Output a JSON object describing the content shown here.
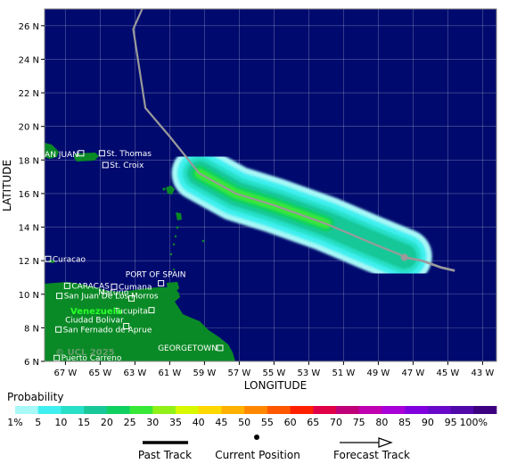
{
  "map": {
    "y_axis_label": "LATITUDE",
    "x_axis_label": "LONGITUDE",
    "lat_ticks": [
      "26 N",
      "24 N",
      "22 N",
      "20 N",
      "18 N",
      "16 N",
      "14 N",
      "12 N",
      "10 N",
      "8 N",
      "6 N"
    ],
    "lon_ticks": [
      "67 W",
      "65 W",
      "63 W",
      "61 W",
      "59 W",
      "57 W",
      "55 W",
      "53 W",
      "51 W",
      "49 W",
      "47 W",
      "45 W",
      "43 W"
    ],
    "lat_range": [
      6,
      27
    ],
    "lon_range": [
      -68.2,
      -42.2
    ],
    "ocean_color": "#000a6e",
    "land_color": "#0a8a26",
    "places": [
      {
        "name": "SAN JUAN",
        "lon": -66.1,
        "lat": 18.4,
        "marker": true
      },
      {
        "name": "St. Thomas",
        "lon": -64.9,
        "lat": 18.4,
        "marker": true
      },
      {
        "name": "St. Croix",
        "lon": -64.7,
        "lat": 17.7,
        "marker": true
      },
      {
        "name": "Curacao",
        "lon": -68.0,
        "lat": 12.1,
        "marker": true
      },
      {
        "name": "PORT OF SPAIN",
        "lon": -61.5,
        "lat": 10.65,
        "marker": true
      },
      {
        "name": "CARACAS",
        "lon": -66.9,
        "lat": 10.5,
        "marker": true
      },
      {
        "name": "Cumana",
        "lon": -64.2,
        "lat": 10.45,
        "marker": true
      },
      {
        "name": "San Juan De Los Morros",
        "lon": -67.35,
        "lat": 9.9,
        "marker": true
      },
      {
        "name": "Maturin",
        "lon": -63.2,
        "lat": 9.75,
        "marker": true
      },
      {
        "name": "Tucupita",
        "lon": -62.05,
        "lat": 9.05,
        "marker": true
      },
      {
        "name": "Ciudad Bolivar",
        "lon": -63.5,
        "lat": 8.1,
        "marker": true
      },
      {
        "name": "San Fernado de Aprue",
        "lon": -67.4,
        "lat": 7.9,
        "marker": true
      },
      {
        "name": "GEORGETOWN",
        "lon": -58.1,
        "lat": 6.8,
        "marker": true
      },
      {
        "name": "Puerto Carreno",
        "lon": -67.5,
        "lat": 6.2,
        "marker": true
      }
    ],
    "country_label": "Venezuela",
    "watermark": "© UCL 2025"
  },
  "track": {
    "past": [
      [
        -62.5,
        27.2
      ],
      [
        -63.1,
        25.8
      ],
      [
        -62.4,
        21.1
      ],
      [
        -61.0,
        19.4
      ],
      [
        -59.3,
        17.2
      ],
      [
        -57.2,
        16.0
      ],
      [
        -55.0,
        15.3
      ],
      [
        -52.0,
        14.2
      ],
      [
        -49.5,
        13.1
      ],
      [
        -47.5,
        12.25
      ]
    ],
    "current": [
      -47.5,
      12.2
    ],
    "forecast": [
      [
        -47.5,
        12.2
      ],
      [
        -46.5,
        12.0
      ],
      [
        -45.4,
        11.6
      ],
      [
        -44.6,
        11.4
      ]
    ],
    "color": "#9a9a9a"
  },
  "legend": {
    "title": "Probability",
    "labels": [
      "1%",
      "5",
      "10",
      "15",
      "20",
      "25",
      "30",
      "35",
      "40",
      "45",
      "50",
      "55",
      "60",
      "65",
      "70",
      "75",
      "80",
      "85",
      "90",
      "95",
      "100%"
    ],
    "colors": [
      "#a8f8f8",
      "#40f0f0",
      "#28e0c8",
      "#18c898",
      "#10d060",
      "#38e838",
      "#90f018",
      "#d8f800",
      "#ffd800",
      "#ffb000",
      "#ff8800",
      "#ff5800",
      "#ff2000",
      "#e00048",
      "#c00078",
      "#c000b0",
      "#a800d8",
      "#8000e0",
      "#6808c8",
      "#5008a8",
      "#3c0080"
    ],
    "past_track_label": "Past Track",
    "current_position_label": "Current Position",
    "forecast_track_label": "Forecast Track"
  }
}
